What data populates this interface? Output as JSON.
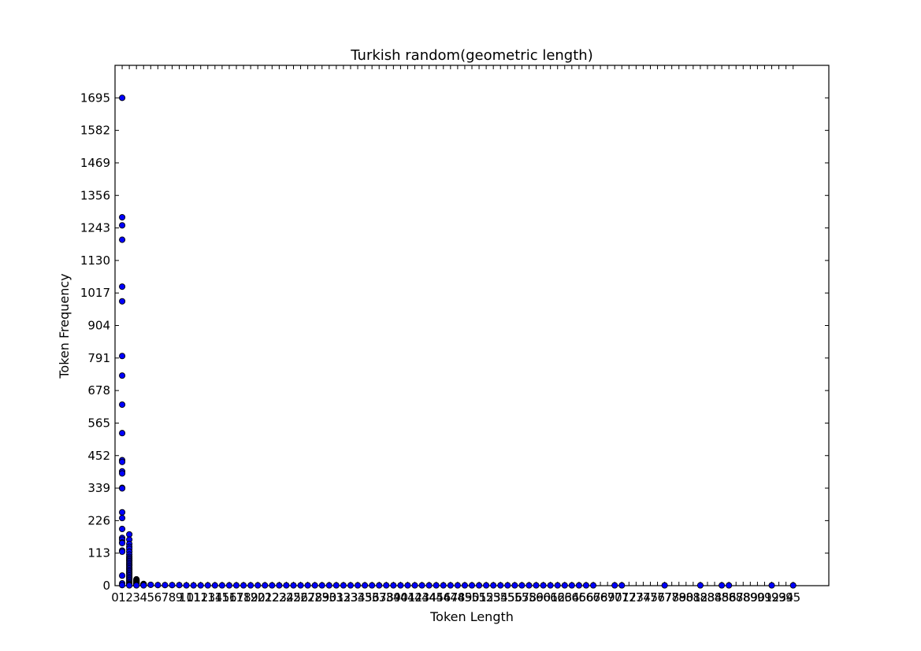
{
  "chart_data": {
    "type": "scatter",
    "title": "Turkish random(geometric length)",
    "xlabel": "Token Length",
    "ylabel": "Token Frequency",
    "xlim": [
      0,
      100
    ],
    "ylim": [
      0,
      1808
    ],
    "xticks": [
      0,
      1,
      2,
      3,
      4,
      5,
      6,
      7,
      8,
      9,
      10,
      11,
      12,
      13,
      14,
      15,
      16,
      17,
      18,
      19,
      20,
      21,
      22,
      23,
      24,
      25,
      26,
      27,
      28,
      29,
      30,
      31,
      32,
      33,
      34,
      35,
      36,
      37,
      38,
      39,
      40,
      41,
      42,
      43,
      44,
      45,
      46,
      47,
      48,
      49,
      50,
      51,
      52,
      53,
      54,
      55,
      56,
      57,
      58,
      59,
      60,
      61,
      62,
      63,
      64,
      65,
      66,
      67,
      68,
      69,
      70,
      71,
      72,
      73,
      74,
      75,
      76,
      77,
      78,
      79,
      80,
      81,
      82,
      83,
      84,
      85,
      86,
      87,
      88,
      89,
      90,
      91,
      92,
      93,
      94,
      95
    ],
    "yticks": [
      0,
      113,
      226,
      339,
      452,
      565,
      678,
      791,
      904,
      1017,
      1130,
      1243,
      1356,
      1469,
      1582,
      1695
    ],
    "grid": false,
    "marker_color": "#0000ff",
    "series": [
      {
        "x": [
          1,
          1,
          1,
          1,
          1,
          1,
          1,
          1,
          1,
          1,
          1,
          1,
          1,
          1,
          1,
          1,
          1,
          1,
          1,
          1,
          1,
          1,
          1,
          1,
          1,
          1,
          1,
          1,
          2,
          2,
          2,
          2,
          2,
          2,
          2,
          2,
          2,
          2,
          2,
          2,
          2,
          2,
          2,
          2,
          2,
          2,
          2,
          2,
          2,
          2,
          2,
          2,
          2,
          2,
          2,
          2,
          2,
          2,
          3,
          3,
          3,
          3,
          3,
          3,
          3,
          3,
          3,
          3,
          3,
          3,
          3,
          3,
          3,
          4,
          4,
          4,
          4,
          4,
          4,
          5,
          6,
          7,
          8,
          9,
          10,
          11,
          12,
          13,
          14,
          15,
          16,
          17,
          18,
          19,
          20,
          21,
          22,
          23,
          24,
          25,
          26,
          27,
          28,
          29,
          30,
          31,
          32,
          33,
          34,
          35,
          36,
          37,
          38,
          39,
          40,
          41,
          42,
          43,
          44,
          45,
          46,
          47,
          48,
          49,
          50,
          51,
          52,
          53,
          54,
          55,
          56,
          57,
          58,
          59,
          60,
          61,
          62,
          63,
          64,
          65,
          66,
          67,
          70,
          71,
          77,
          82,
          85,
          86,
          92,
          95
        ],
        "y": [
          1695,
          1280,
          1252,
          1202,
          1039,
          988,
          798,
          730,
          629,
          530,
          436,
          430,
          397,
          390,
          340,
          338,
          255,
          235,
          197,
          166,
          160,
          150,
          148,
          122,
          118,
          35,
          8,
          2,
          178,
          160,
          145,
          135,
          128,
          118,
          108,
          100,
          95,
          90,
          85,
          80,
          75,
          70,
          65,
          60,
          55,
          50,
          45,
          40,
          35,
          30,
          25,
          20,
          15,
          10,
          6,
          3,
          2,
          1,
          22,
          20,
          18,
          16,
          14,
          12,
          10,
          8,
          7,
          6,
          5,
          4,
          3,
          2,
          1,
          6,
          5,
          4,
          3,
          2,
          1,
          3,
          2,
          2,
          2,
          2,
          1,
          1,
          1,
          1,
          1,
          1,
          1,
          1,
          1,
          1,
          1,
          1,
          1,
          1,
          1,
          1,
          1,
          1,
          1,
          1,
          1,
          1,
          1,
          1,
          1,
          1,
          1,
          1,
          1,
          1,
          1,
          1,
          1,
          1,
          1,
          1,
          1,
          1,
          1,
          1,
          1,
          1,
          1,
          1,
          1,
          1,
          1,
          1,
          1,
          1,
          1,
          1,
          1,
          1,
          1,
          1,
          1,
          1,
          1,
          1,
          1,
          1,
          1,
          1,
          1,
          1
        ]
      }
    ]
  }
}
